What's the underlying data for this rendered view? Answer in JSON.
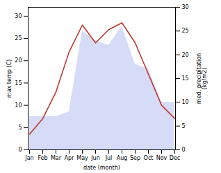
{
  "chart_data": {
    "type": "line",
    "categories": [
      "Jan",
      "Feb",
      "Mar",
      "Apr",
      "May",
      "Jun",
      "Jul",
      "Aug",
      "Sep",
      "Oct",
      "Nov",
      "Dec"
    ],
    "xlabel": "date (month)",
    "ylabel": "max temp (C)",
    "y2label": "med. precipitation\n(kg/m2)",
    "ylim": [
      0,
      32
    ],
    "yticks": [
      0,
      5,
      10,
      15,
      20,
      25,
      30
    ],
    "y2lim": [
      0,
      30
    ],
    "y2ticks": [
      0,
      5,
      10,
      15,
      20,
      25,
      30
    ],
    "grid": false,
    "series": [
      {
        "type": "area",
        "axis": "y2",
        "color": "#c8cff5",
        "values": [
          7.0,
          7.0,
          7.0,
          8.0,
          25.0,
          23.0,
          22.0,
          26.0,
          18.0,
          17.0,
          10.0,
          10.0
        ]
      },
      {
        "type": "line",
        "color": "#c0392b",
        "values": [
          3.5,
          7.0,
          13.0,
          22.0,
          28.0,
          24.0,
          27.0,
          28.5,
          24.0,
          17.0,
          10.0,
          7.0
        ]
      }
    ]
  }
}
